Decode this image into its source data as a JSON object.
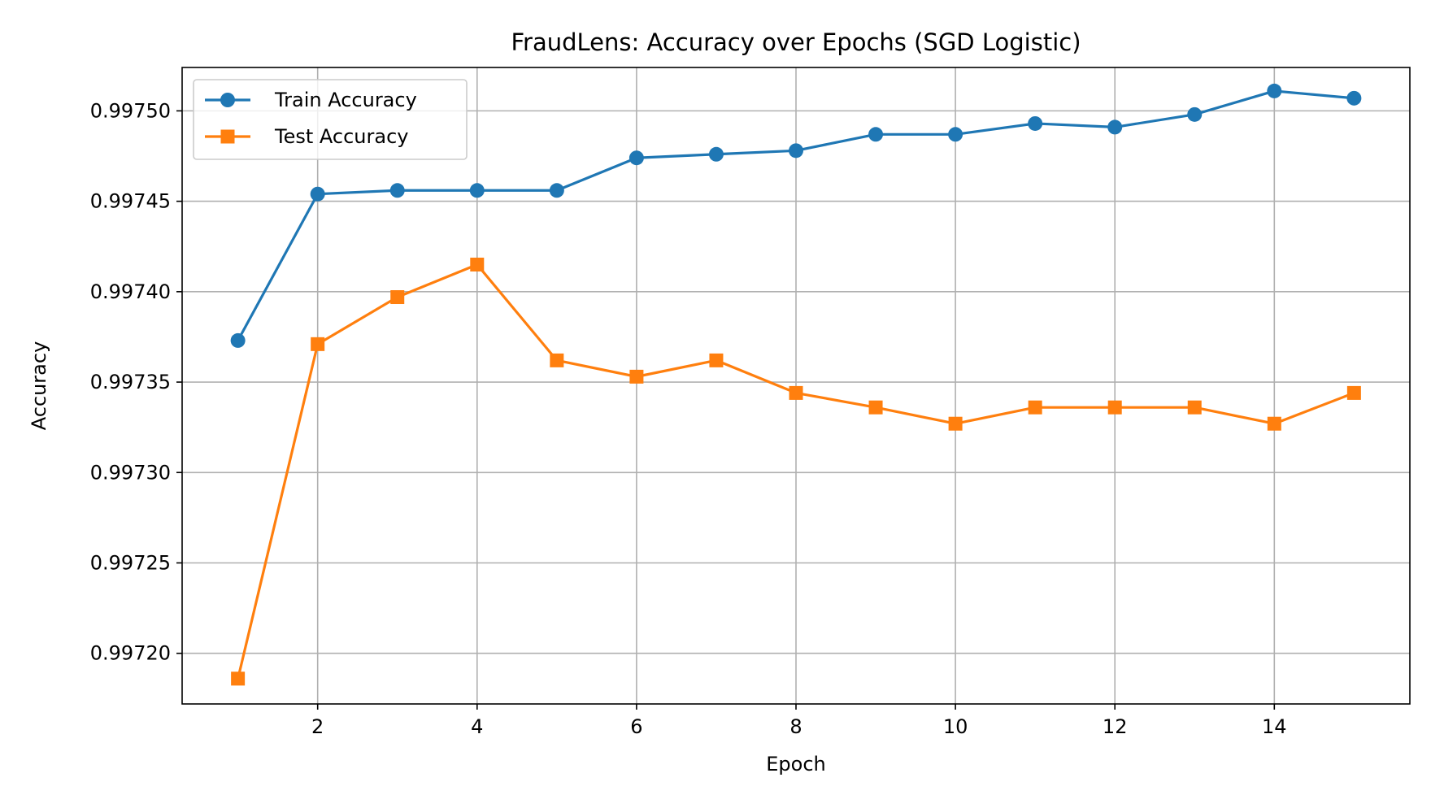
{
  "chart_data": {
    "type": "line",
    "title": "FraudLens: Accuracy over Epochs (SGD Logistic)",
    "xlabel": "Epoch",
    "ylabel": "Accuracy",
    "x": [
      1,
      2,
      3,
      4,
      5,
      6,
      7,
      8,
      9,
      10,
      11,
      12,
      13,
      14,
      15
    ],
    "xlim": [
      0.3,
      15.7
    ],
    "ylim": [
      0.997172,
      0.997524
    ],
    "xticks": [
      2,
      4,
      6,
      8,
      10,
      12,
      14
    ],
    "xtick_labels": [
      "2",
      "4",
      "6",
      "8",
      "10",
      "12",
      "14"
    ],
    "yticks": [
      0.9972,
      0.99725,
      0.9973,
      0.99735,
      0.9974,
      0.99745,
      0.9975
    ],
    "ytick_labels": [
      "0.99720",
      "0.99725",
      "0.99730",
      "0.99735",
      "0.99740",
      "0.99745",
      "0.99750"
    ],
    "grid": true,
    "legend_position": "upper-left",
    "series": [
      {
        "name": "Train Accuracy",
        "color": "#1f77b4",
        "marker": "circle",
        "values": [
          0.997373,
          0.997454,
          0.997456,
          0.997456,
          0.997456,
          0.997474,
          0.997476,
          0.997478,
          0.997487,
          0.997487,
          0.997493,
          0.997491,
          0.997498,
          0.997511,
          0.997507
        ]
      },
      {
        "name": "Test Accuracy",
        "color": "#ff7f0e",
        "marker": "square",
        "values": [
          0.997186,
          0.997371,
          0.997397,
          0.997415,
          0.997362,
          0.997353,
          0.997362,
          0.997344,
          0.997336,
          0.997327,
          0.997336,
          0.997336,
          0.997336,
          0.997327,
          0.997344
        ]
      }
    ]
  }
}
